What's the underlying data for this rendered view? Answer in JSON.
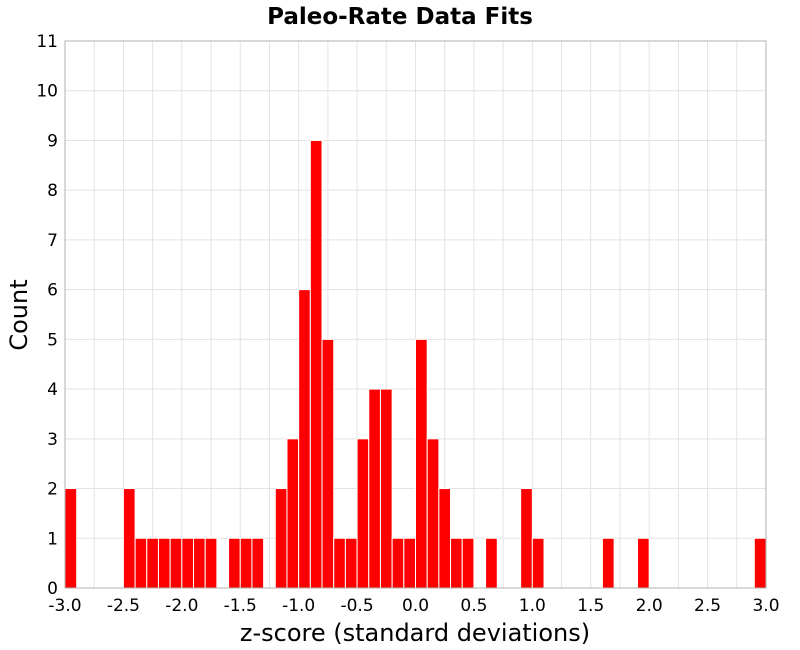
{
  "chart_data": {
    "type": "bar",
    "title": "Paleo-Rate Data Fits",
    "xlabel": "z-score (standard deviations)",
    "ylabel": "Count",
    "xlim": [
      -3.0,
      3.0
    ],
    "ylim": [
      0,
      11
    ],
    "grid": true,
    "bar_color": "#ff0000",
    "bin_width": 0.1,
    "x_ticks": [
      "-3.0",
      "-2.5",
      "-2.0",
      "-1.5",
      "-1.0",
      "-0.5",
      "0.0",
      "0.5",
      "1.0",
      "1.5",
      "2.0",
      "2.5",
      "3.0"
    ],
    "y_ticks": [
      "0",
      "1",
      "2",
      "3",
      "4",
      "5",
      "6",
      "7",
      "8",
      "9",
      "10",
      "11"
    ],
    "bars": [
      {
        "x0": -3.0,
        "x1": -2.9,
        "value": 2
      },
      {
        "x0": -2.5,
        "x1": -2.4,
        "value": 2
      },
      {
        "x0": -2.4,
        "x1": -2.3,
        "value": 1
      },
      {
        "x0": -2.3,
        "x1": -2.2,
        "value": 1
      },
      {
        "x0": -2.2,
        "x1": -2.1,
        "value": 1
      },
      {
        "x0": -2.1,
        "x1": -2.0,
        "value": 1
      },
      {
        "x0": -2.0,
        "x1": -1.9,
        "value": 1
      },
      {
        "x0": -1.9,
        "x1": -1.8,
        "value": 1
      },
      {
        "x0": -1.8,
        "x1": -1.7,
        "value": 1
      },
      {
        "x0": -1.6,
        "x1": -1.5,
        "value": 1
      },
      {
        "x0": -1.5,
        "x1": -1.4,
        "value": 1
      },
      {
        "x0": -1.4,
        "x1": -1.3,
        "value": 1
      },
      {
        "x0": -1.2,
        "x1": -1.1,
        "value": 2
      },
      {
        "x0": -1.1,
        "x1": -1.0,
        "value": 3
      },
      {
        "x0": -1.0,
        "x1": -0.9,
        "value": 6
      },
      {
        "x0": -0.9,
        "x1": -0.8,
        "value": 9
      },
      {
        "x0": -0.8,
        "x1": -0.7,
        "value": 5
      },
      {
        "x0": -0.7,
        "x1": -0.6,
        "value": 1
      },
      {
        "x0": -0.6,
        "x1": -0.5,
        "value": 1
      },
      {
        "x0": -0.5,
        "x1": -0.4,
        "value": 3
      },
      {
        "x0": -0.4,
        "x1": -0.3,
        "value": 4
      },
      {
        "x0": -0.3,
        "x1": -0.2,
        "value": 4
      },
      {
        "x0": -0.2,
        "x1": -0.1,
        "value": 1
      },
      {
        "x0": -0.1,
        "x1": 0.0,
        "value": 1
      },
      {
        "x0": 0.0,
        "x1": 0.1,
        "value": 5
      },
      {
        "x0": 0.1,
        "x1": 0.2,
        "value": 3
      },
      {
        "x0": 0.2,
        "x1": 0.3,
        "value": 2
      },
      {
        "x0": 0.3,
        "x1": 0.4,
        "value": 1
      },
      {
        "x0": 0.4,
        "x1": 0.5,
        "value": 1
      },
      {
        "x0": 0.6,
        "x1": 0.7,
        "value": 1
      },
      {
        "x0": 0.9,
        "x1": 1.0,
        "value": 2
      },
      {
        "x0": 1.0,
        "x1": 1.1,
        "value": 1
      },
      {
        "x0": 1.6,
        "x1": 1.7,
        "value": 1
      },
      {
        "x0": 1.9,
        "x1": 2.0,
        "value": 1
      },
      {
        "x0": 2.9,
        "x1": 3.0,
        "value": 1
      }
    ]
  }
}
